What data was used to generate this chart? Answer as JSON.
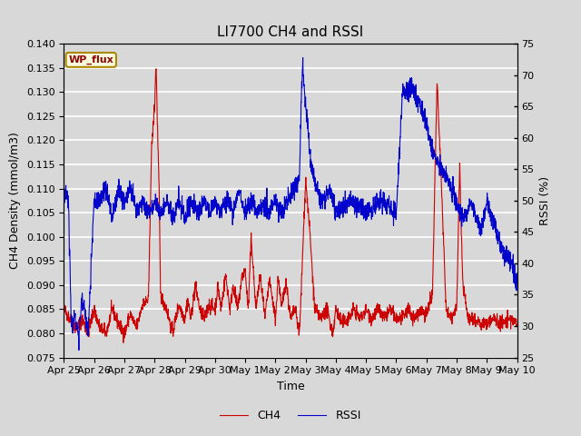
{
  "title": "LI7700 CH4 and RSSI",
  "xlabel": "Time",
  "ylabel_left": "CH4 Density (mmol/m3)",
  "ylabel_right": "RSSI (%)",
  "ylim_left": [
    0.075,
    0.14
  ],
  "ylim_right": [
    25,
    75
  ],
  "yticks_left": [
    0.075,
    0.08,
    0.085,
    0.09,
    0.095,
    0.1,
    0.105,
    0.11,
    0.115,
    0.12,
    0.125,
    0.13,
    0.135,
    0.14
  ],
  "yticks_right": [
    25,
    30,
    35,
    40,
    45,
    50,
    55,
    60,
    65,
    70,
    75
  ],
  "xtick_labels": [
    "Apr 25",
    "Apr 26",
    "Apr 27",
    "Apr 28",
    "Apr 29",
    "Apr 30",
    "May 1",
    "May 2",
    "May 3",
    "May 4",
    "May 5",
    "May 6",
    "May 7",
    "May 8",
    "May 9",
    "May 10"
  ],
  "color_ch4": "#cc0000",
  "color_rssi": "#0000cc",
  "fig_facecolor": "#d8d8d8",
  "plot_facecolor": "#d8d8d8",
  "grid_color": "#ffffff",
  "legend_label_ch4": "CH4",
  "legend_label_rssi": "RSSI",
  "site_label": "WP_flux",
  "title_fontsize": 11,
  "axis_fontsize": 9,
  "tick_fontsize": 8,
  "legend_fontsize": 9,
  "t_ctrl_ch4": [
    0,
    0.2,
    0.4,
    0.6,
    0.8,
    1.0,
    1.2,
    1.4,
    1.6,
    1.8,
    2.0,
    2.2,
    2.4,
    2.6,
    2.8,
    2.9,
    3.0,
    3.05,
    3.1,
    3.15,
    3.2,
    3.4,
    3.6,
    3.8,
    4.0,
    4.1,
    4.2,
    4.35,
    4.5,
    4.65,
    4.8,
    5.0,
    5.1,
    5.2,
    5.35,
    5.5,
    5.6,
    5.75,
    5.9,
    6.0,
    6.1,
    6.2,
    6.35,
    6.5,
    6.65,
    6.8,
    7.0,
    7.1,
    7.2,
    7.35,
    7.5,
    7.65,
    7.8,
    8.0,
    8.15,
    8.3,
    8.5,
    8.7,
    8.9,
    9.0,
    9.2,
    9.4,
    9.6,
    9.8,
    10.0,
    10.2,
    10.4,
    10.6,
    10.8,
    11.0,
    11.2,
    11.4,
    11.6,
    11.8,
    12.0,
    12.2,
    12.35,
    12.5,
    12.65,
    12.8,
    13.0,
    13.1,
    13.2,
    13.4,
    13.6,
    13.8,
    14.0,
    14.2,
    14.5,
    14.8,
    15.0
  ],
  "v_ctrl_ch4": [
    0.085,
    0.083,
    0.081,
    0.083,
    0.08,
    0.085,
    0.081,
    0.08,
    0.085,
    0.082,
    0.08,
    0.084,
    0.081,
    0.086,
    0.087,
    0.118,
    0.127,
    0.136,
    0.122,
    0.11,
    0.088,
    0.085,
    0.08,
    0.086,
    0.083,
    0.087,
    0.083,
    0.09,
    0.085,
    0.083,
    0.086,
    0.085,
    0.09,
    0.085,
    0.092,
    0.085,
    0.09,
    0.085,
    0.092,
    0.093,
    0.085,
    0.1,
    0.085,
    0.092,
    0.083,
    0.091,
    0.083,
    0.092,
    0.085,
    0.091,
    0.083,
    0.085,
    0.08,
    0.112,
    0.1,
    0.085,
    0.083,
    0.085,
    0.08,
    0.085,
    0.082,
    0.083,
    0.085,
    0.083,
    0.085,
    0.083,
    0.085,
    0.083,
    0.085,
    0.083,
    0.083,
    0.085,
    0.083,
    0.085,
    0.084,
    0.088,
    0.132,
    0.11,
    0.085,
    0.083,
    0.085,
    0.115,
    0.09,
    0.083,
    0.083,
    0.082,
    0.082,
    0.083,
    0.082,
    0.083,
    0.082
  ],
  "t_ctrl_rssi": [
    0,
    0.05,
    0.15,
    0.25,
    0.35,
    0.5,
    0.6,
    0.8,
    1.0,
    1.2,
    1.4,
    1.6,
    1.8,
    2.0,
    2.2,
    2.4,
    2.6,
    2.8,
    3.0,
    3.2,
    3.4,
    3.6,
    3.8,
    4.0,
    4.2,
    4.4,
    4.6,
    4.8,
    5.0,
    5.2,
    5.4,
    5.6,
    5.8,
    6.0,
    6.2,
    6.4,
    6.6,
    6.8,
    7.0,
    7.2,
    7.4,
    7.6,
    7.8,
    7.85,
    7.9,
    8.0,
    8.2,
    8.5,
    8.8,
    9.0,
    9.5,
    10.0,
    10.5,
    11.0,
    11.2,
    11.5,
    11.8,
    12.0,
    12.2,
    12.5,
    12.8,
    13.0,
    13.2,
    13.5,
    13.8,
    14.0,
    14.2,
    14.5,
    14.8,
    15.0
  ],
  "v_ctrl_rssi": [
    50,
    52,
    50,
    29,
    32,
    28,
    35,
    29,
    50,
    50,
    52,
    47,
    52,
    50,
    52,
    48,
    50,
    48,
    50,
    48,
    50,
    47,
    50,
    47,
    50,
    48,
    50,
    48,
    50,
    48,
    50,
    48,
    52,
    48,
    50,
    48,
    50,
    48,
    50,
    48,
    50,
    52,
    54,
    65,
    72,
    65,
    55,
    50,
    52,
    48,
    50,
    48,
    50,
    48,
    67,
    68,
    65,
    62,
    58,
    55,
    52,
    50,
    47,
    50,
    45,
    50,
    47,
    42,
    40,
    37
  ]
}
